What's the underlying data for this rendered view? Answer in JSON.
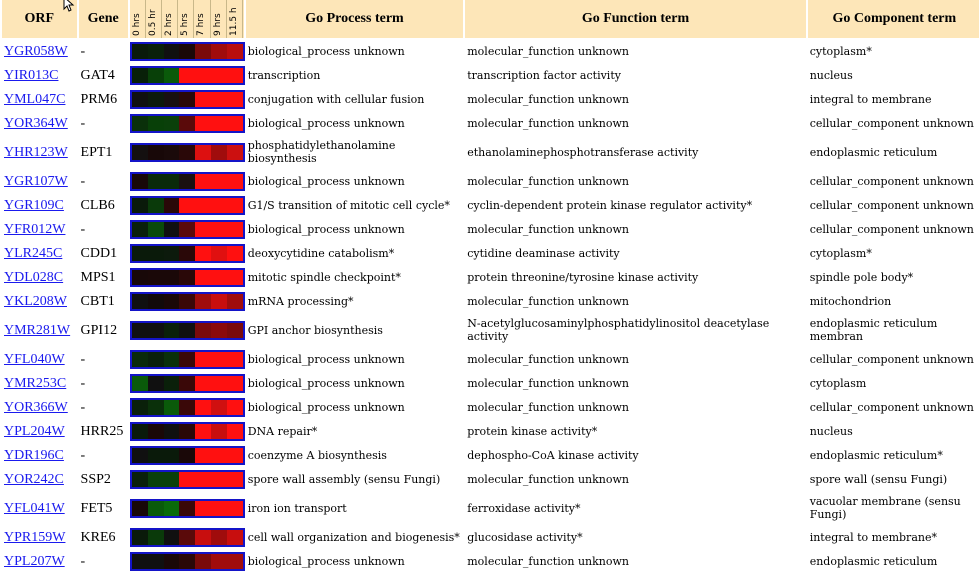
{
  "headers": {
    "orf": "ORF",
    "gene": "Gene",
    "times": [
      "0 hrs",
      "0.5 hr",
      "2 hrs",
      "5 hrs",
      "7 hrs",
      "9 hrs",
      "11.5 h"
    ],
    "process": "Go Process term",
    "function": "Go Function term",
    "component": "Go Component term"
  },
  "colors": {
    "header_bg": "#fde6b8",
    "link": "#1a1aee",
    "heat_border": "#1414c8"
  },
  "rows": [
    {
      "orf": "YGR058W",
      "gene": "-",
      "process": "biological_process unknown",
      "function": "molecular_function unknown",
      "component": "cytoplasm*",
      "heat": [
        "#0a1a0a",
        "#0a200a",
        "#101010",
        "#1a0808",
        "#7a0a0a",
        "#a00c0c",
        "#b80e0e"
      ]
    },
    {
      "orf": "YIR013C",
      "gene": "GAT4",
      "process": "transcription",
      "function": "transcription factor activity",
      "component": "nucleus",
      "heat": [
        "#082008",
        "#084008",
        "#0a5a0a",
        "#ff1010",
        "#ff1010",
        "#ff1010",
        "#ff1010"
      ]
    },
    {
      "orf": "YML047C",
      "gene": "PRM6",
      "process": "conjugation with cellular fusion",
      "function": "molecular_function unknown",
      "component": "integral to membrane",
      "heat": [
        "#101010",
        "#0c1a0c",
        "#181010",
        "#2a0808",
        "#ff1010",
        "#ff1010",
        "#ff1010"
      ]
    },
    {
      "orf": "YOR364W",
      "gene": "-",
      "process": "biological_process unknown",
      "function": "molecular_function unknown",
      "component": "cellular_component unknown",
      "heat": [
        "#0a300a",
        "#084008",
        "#0a400a",
        "#5a0a0a",
        "#ff1010",
        "#ff1010",
        "#ff1010"
      ]
    },
    {
      "orf": "YHR123W",
      "gene": "EPT1",
      "process": "phosphatidylethanolamine biosynthesis",
      "function": "ethanolaminephosphotransferase activity",
      "component": "endoplasmic reticulum",
      "tall": true,
      "heat": [
        "#141010",
        "#180808",
        "#1a0a0a",
        "#2a0808",
        "#dd1010",
        "#a00c0c",
        "#cc1010"
      ]
    },
    {
      "orf": "YGR107W",
      "gene": "-",
      "process": "biological_process unknown",
      "function": "molecular_function unknown",
      "component": "cellular_component unknown",
      "heat": [
        "#180808",
        "#0a2a0a",
        "#0a2a0a",
        "#1a1010",
        "#ff1010",
        "#ff1010",
        "#ff1010"
      ]
    },
    {
      "orf": "YGR109C",
      "gene": "CLB6",
      "process": "G1/S transition of mitotic cell cycle*",
      "function": "cyclin-dependent protein kinase regulator activity*",
      "component": "cellular_component unknown",
      "heat": [
        "#0a1a0a",
        "#0a3a0a",
        "#2a0808",
        "#ff1010",
        "#ff1010",
        "#ff1010",
        "#ff1010"
      ]
    },
    {
      "orf": "YFR012W",
      "gene": "-",
      "process": "biological_process unknown",
      "function": "molecular_function unknown",
      "component": "cellular_component unknown",
      "heat": [
        "#0a200a",
        "#0a4a0a",
        "#101010",
        "#5a0a0a",
        "#ff1010",
        "#ff1010",
        "#ff1010"
      ]
    },
    {
      "orf": "YLR245C",
      "gene": "CDD1",
      "process": "deoxycytidine catabolism*",
      "function": "cytidine deaminase activity",
      "component": "cytoplasm*",
      "heat": [
        "#0a1a0a",
        "#0a1a0a",
        "#0c1a0c",
        "#2a0808",
        "#ff1010",
        "#e01010",
        "#ff1010"
      ]
    },
    {
      "orf": "YDL028C",
      "gene": "MPS1",
      "process": "mitotic spindle checkpoint*",
      "function": "protein threonine/tyrosine kinase activity",
      "component": "spindle pole body*",
      "heat": [
        "#180808",
        "#1a0808",
        "#1a0808",
        "#2a0808",
        "#ff1010",
        "#ff1010",
        "#ff1010"
      ]
    },
    {
      "orf": "YKL208W",
      "gene": "CBT1",
      "process": "mRNA processing*",
      "function": "molecular_function unknown",
      "component": "mitochondrion",
      "heat": [
        "#101010",
        "#120a0a",
        "#1a0808",
        "#3a0808",
        "#a00c0c",
        "#c80e0e",
        "#a00c0c"
      ]
    },
    {
      "orf": "YMR281W",
      "gene": "GPI12",
      "process": "GPI anchor biosynthesis",
      "function": "N-acetylglucosaminylphosphatidylinositol deacetylase activity",
      "component": "endoplasmic reticulum membran",
      "tall": true,
      "heat": [
        "#101010",
        "#101010",
        "#0a200a",
        "#101010",
        "#7a0a0a",
        "#8a0a0a",
        "#7a0a0a"
      ]
    },
    {
      "orf": "YFL040W",
      "gene": "-",
      "process": "biological_process unknown",
      "function": "molecular_function unknown",
      "component": "cellular_component unknown",
      "heat": [
        "#0a2a0a",
        "#0a200a",
        "#0a300a",
        "#3a0808",
        "#ff1010",
        "#ff1010",
        "#ff1010"
      ]
    },
    {
      "orf": "YMR253C",
      "gene": "-",
      "process": "biological_process unknown",
      "function": "molecular_function unknown",
      "component": "cytoplasm",
      "heat": [
        "#0a5a0a",
        "#101010",
        "#0a200a",
        "#3a0808",
        "#ff1010",
        "#ff1010",
        "#ff1010"
      ]
    },
    {
      "orf": "YOR366W",
      "gene": "-",
      "process": "biological_process unknown",
      "function": "molecular_function unknown",
      "component": "cellular_component unknown",
      "heat": [
        "#0a200a",
        "#0a300a",
        "#0a5a0a",
        "#3a0808",
        "#ff1010",
        "#d01010",
        "#ff1010"
      ]
    },
    {
      "orf": "YPL204W",
      "gene": "HRR25",
      "process": "DNA repair*",
      "function": "protein kinase activity*",
      "component": "nucleus",
      "heat": [
        "#0a1a0a",
        "#1a0808",
        "#101010",
        "#2a0808",
        "#ff1010",
        "#c80e0e",
        "#ff1010"
      ]
    },
    {
      "orf": "YDR196C",
      "gene": "-",
      "process": "coenzyme A biosynthesis",
      "function": "dephospho-CoA kinase activity",
      "component": "endoplasmic reticulum*",
      "heat": [
        "#101010",
        "#0a1a0a",
        "#0a1a0a",
        "#1a0808",
        "#ff1010",
        "#ff1010",
        "#ff1010"
      ]
    },
    {
      "orf": "YOR242C",
      "gene": "SSP2",
      "process": "spore wall assembly (sensu Fungi)",
      "function": "molecular_function unknown",
      "component": "spore wall (sensu Fungi)",
      "heat": [
        "#0a200a",
        "#0a400a",
        "#0a400a",
        "#ff1010",
        "#ff1010",
        "#ff1010",
        "#ff1010"
      ]
    },
    {
      "orf": "YFL041W",
      "gene": "FET5",
      "process": "iron ion transport",
      "function": "ferroxidase activity*",
      "component": "vacuolar membrane (sensu Fungi)",
      "tall": true,
      "heat": [
        "#180808",
        "#0a5a0a",
        "#0a6a0a",
        "#3a0808",
        "#ff1010",
        "#ff1010",
        "#ff1010"
      ]
    },
    {
      "orf": "YPR159W",
      "gene": "KRE6",
      "process": "cell wall organization and biogenesis*",
      "function": "glucosidase activity*",
      "component": "integral to membrane*",
      "heat": [
        "#0a1a0a",
        "#0a3a0a",
        "#101010",
        "#5a0a0a",
        "#c80e0e",
        "#a00c0c",
        "#c80e0e"
      ]
    },
    {
      "orf": "YPL207W",
      "gene": "-",
      "process": "biological_process unknown",
      "function": "molecular_function unknown",
      "component": "endoplasmic reticulum",
      "heat": [
        "#101010",
        "#101010",
        "#1a0808",
        "#2a0808",
        "#7a0a0a",
        "#a00c0c",
        "#a00c0c"
      ]
    }
  ]
}
